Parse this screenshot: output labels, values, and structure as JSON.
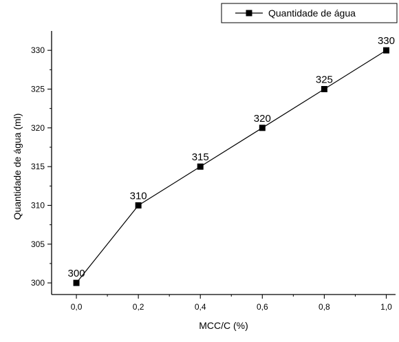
{
  "chart_data": {
    "type": "line",
    "x": [
      0.0,
      0.2,
      0.4,
      0.6,
      0.8,
      1.0
    ],
    "series": [
      {
        "name": "Quantidade de água",
        "values": [
          300,
          310,
          315,
          320,
          325,
          330
        ],
        "data_labels": [
          "300",
          "310",
          "315",
          "320",
          "325",
          "330"
        ],
        "color": "#000000",
        "marker": "square"
      }
    ],
    "xlabel": "MCC/C (%)",
    "ylabel": "Quantidade de água (ml)",
    "xlim": [
      -0.08,
      1.03
    ],
    "ylim": [
      298.5,
      332.5
    ],
    "x_ticks": [
      0.0,
      0.2,
      0.4,
      0.6,
      0.8,
      1.0
    ],
    "x_tick_labels": [
      "0,0",
      "0,2",
      "0,4",
      "0,6",
      "0,8",
      "1,0"
    ],
    "y_ticks": [
      300,
      305,
      310,
      315,
      320,
      325,
      330
    ],
    "y_tick_labels": [
      "300",
      "305",
      "310",
      "315",
      "320",
      "325",
      "330"
    ],
    "grid": false,
    "legend_position": "top-right"
  }
}
